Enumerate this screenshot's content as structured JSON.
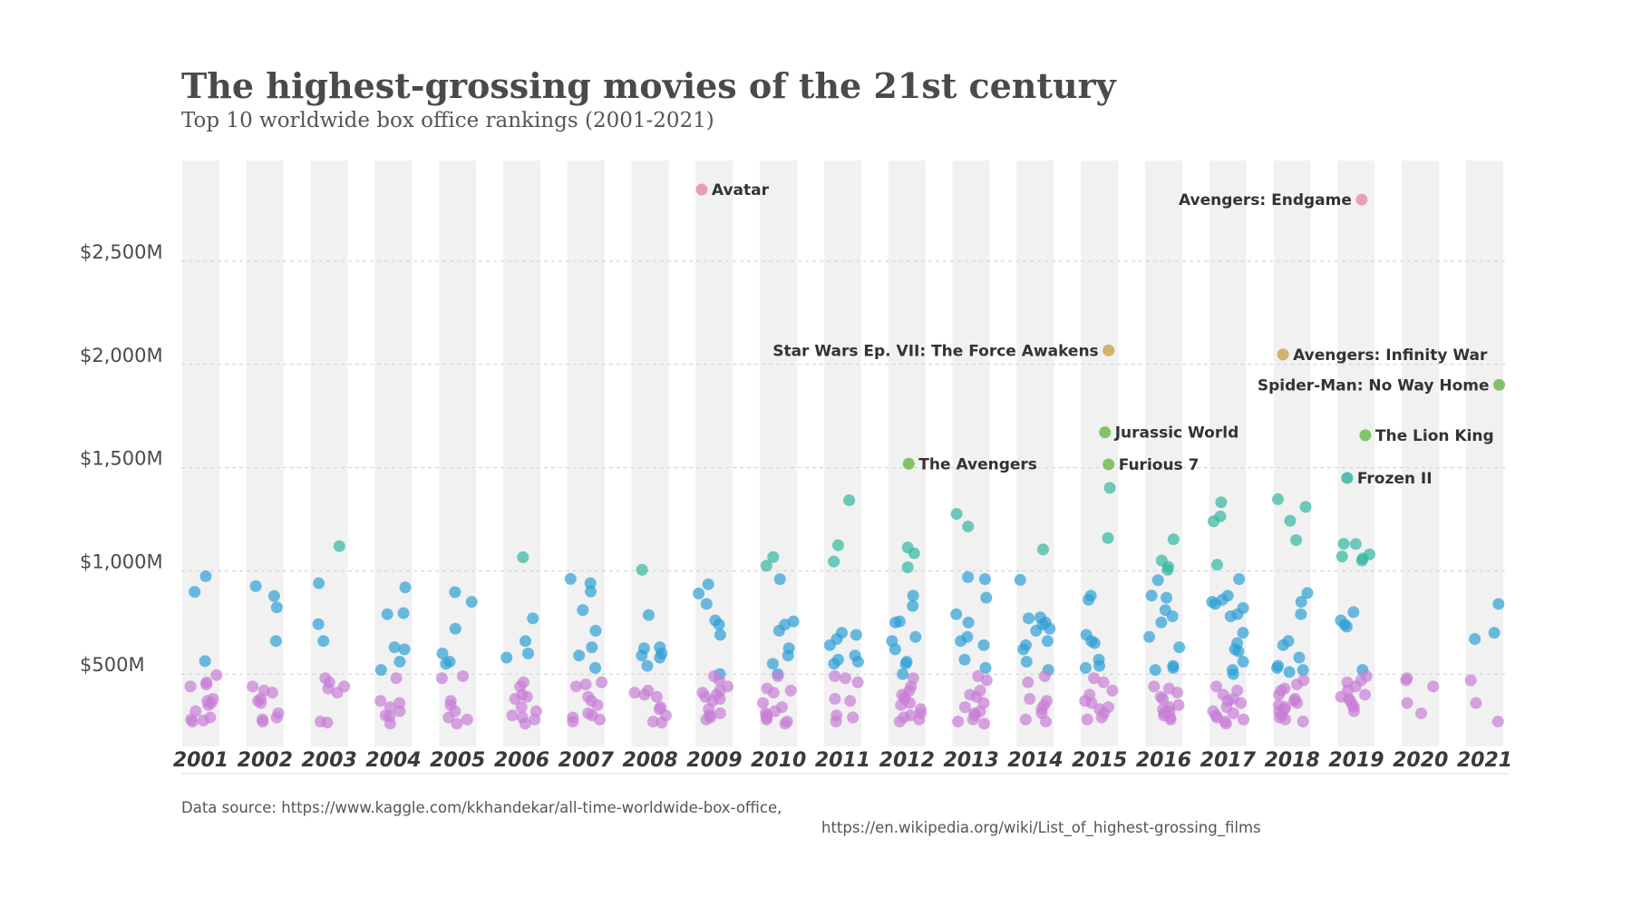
{
  "chart_data": {
    "type": "scatter",
    "title": "The highest-grossing movies of the 21st century",
    "subtitle": "Top 10 worldwide box office rankings (2001-2021)",
    "source_line1": "Data source: https://www.kaggle.com/kkhandekar/all-time-worldwide-box-office,",
    "source_line2": "https://en.wikipedia.org/wiki/List_of_highest-grossing_films",
    "xlabel": "",
    "ylabel": "",
    "ylim": [
      0,
      3000
    ],
    "y_ticks": [
      {
        "value": 500,
        "label": "$500M"
      },
      {
        "value": 1000,
        "label": "$1,000M"
      },
      {
        "value": 1500,
        "label": "$1,500M"
      },
      {
        "value": 2000,
        "label": "$2,000M"
      },
      {
        "value": 2500,
        "label": "$2,500M"
      }
    ],
    "grid": "horizontal dashed",
    "categories": [
      "2001",
      "2002",
      "2003",
      "2004",
      "2005",
      "2006",
      "2007",
      "2008",
      "2009",
      "2010",
      "2011",
      "2012",
      "2013",
      "2014",
      "2015",
      "2016",
      "2017",
      "2018",
      "2019",
      "2020",
      "2021"
    ],
    "series_colors": {
      "under500": "#c77ed6",
      "500to1000": "#2e9fd6",
      "1000to1500": "#33b6a0",
      "1500to2000": "#6fbb4d",
      "2000to2500": "#caa753",
      "over2500": "#e88fa8"
    },
    "years": {
      "2001": {
        "large": [
          974,
          898,
          563
        ],
        "small": [
          495,
          460,
          450,
          440,
          380,
          370,
          360,
          350,
          320,
          290,
          280,
          275,
          270
        ]
      },
      "2002": {
        "large": [
          926,
          878,
          823,
          660
        ],
        "small": [
          440,
          420,
          410,
          380,
          370,
          360,
          310,
          290,
          280,
          270
        ]
      },
      "2003": {
        "large": [
          1120,
          940,
          742,
          660
        ],
        "small": [
          480,
          460,
          440,
          430,
          410,
          270,
          265
        ]
      },
      "2004": {
        "large": [
          920,
          795,
          790,
          630,
          620,
          560,
          520
        ],
        "small": [
          480,
          370,
          360,
          340,
          320,
          300,
          295,
          260
        ]
      },
      "2005": {
        "large": [
          897,
          850,
          720,
          600,
          560,
          550
        ],
        "small": [
          490,
          480,
          370,
          350,
          320,
          290,
          280,
          260
        ]
      },
      "2006": {
        "large": [
          1066,
          770,
          660,
          600,
          580
        ],
        "small": [
          460,
          440,
          400,
          390,
          380,
          340,
          320,
          300,
          290,
          280,
          260
        ]
      },
      "2007": {
        "large": [
          961,
          940,
          900,
          810,
          710,
          630,
          590,
          530
        ],
        "small": [
          460,
          450,
          440,
          390,
          370,
          350,
          310,
          300,
          290,
          280,
          270
        ]
      },
      "2008": {
        "large": [
          1005,
          786,
          630,
          625,
          600,
          590,
          580,
          540
        ],
        "small": [
          420,
          410,
          400,
          390,
          340,
          330,
          300,
          270,
          265
        ]
      },
      "2009": {
        "large": [
          935,
          890,
          840,
          760,
          740,
          690
        ],
        "small": [
          500,
          490,
          470,
          440,
          420,
          410,
          400,
          390,
          380,
          370,
          330,
          310,
          300,
          290,
          280
        ]
      },
      "2010": {
        "large": [
          1067,
          1025,
          960,
          755,
          740,
          710,
          625,
          590,
          550
        ],
        "small": [
          500,
          490,
          430,
          420,
          410,
          360,
          340,
          320,
          310,
          300,
          290,
          280,
          270,
          260
        ]
      },
      "2011": {
        "large": [
          1342,
          1124,
          1045,
          700,
          690,
          670,
          640,
          590,
          570,
          560,
          550
        ],
        "small": [
          490,
          480,
          460,
          380,
          370,
          300,
          290,
          270
        ]
      },
      "2012": {
        "large": [
          1113,
          1085,
          1017,
          880,
          830,
          755,
          750,
          680,
          660,
          620,
          560,
          550
        ],
        "small": [
          500,
          480,
          440,
          420,
          400,
          390,
          380,
          360,
          350,
          330,
          310,
          300,
          290,
          280,
          270
        ]
      },
      "2013": {
        "large": [
          1276,
          1215,
          970,
          960,
          870,
          790,
          750,
          680,
          660,
          640,
          570,
          530
        ],
        "small": [
          490,
          470,
          420,
          400,
          390,
          360,
          340,
          320,
          310,
          300,
          280,
          270,
          260
        ]
      },
      "2014": {
        "large": [
          1104,
          956,
          775,
          770,
          750,
          740,
          720,
          710,
          660,
          640,
          620,
          560,
          520
        ],
        "small": [
          490,
          460,
          380,
          370,
          350,
          330,
          310,
          280,
          270
        ]
      },
      "2015": {
        "large": [
          1402,
          1159,
          880,
          860,
          690,
          660,
          650,
          570,
          540,
          530
        ],
        "small": [
          480,
          460,
          420,
          400,
          370,
          360,
          340,
          330,
          310,
          290,
          280
        ]
      },
      "2016": {
        "large": [
          1153,
          1050,
          1020,
          1005,
          955,
          880,
          870,
          810,
          780,
          750,
          680,
          630,
          540,
          530,
          520
        ],
        "small": [
          440,
          430,
          410,
          390,
          380,
          350,
          340,
          330,
          320,
          310,
          300,
          290,
          280
        ]
      },
      "2017": {
        "large": [
          1332,
          1264,
          1240,
          1030,
          960,
          880,
          860,
          850,
          840,
          820,
          790,
          780,
          700,
          650,
          620,
          610,
          560,
          520
        ],
        "small": [
          500,
          440,
          420,
          400,
          380,
          370,
          360,
          340,
          320,
          310,
          300,
          290,
          280,
          270,
          260
        ]
      },
      "2018": {
        "large": [
          1347,
          1310,
          1243,
          1149,
          893,
          850,
          790,
          660,
          640,
          580,
          540,
          530,
          520,
          510
        ],
        "small": [
          470,
          450,
          430,
          420,
          400,
          380,
          370,
          360,
          350,
          340,
          330,
          320,
          300,
          290,
          280,
          270
        ]
      },
      "2019": {
        "large": [
          1131,
          1130,
          1080,
          1070,
          1060,
          1050,
          800,
          760,
          740,
          730,
          520
        ],
        "small": [
          490,
          470,
          460,
          440,
          420,
          400,
          390,
          380,
          370,
          350,
          340,
          320
        ]
      },
      "2020": {
        "large": [],
        "small": [
          480,
          470,
          440,
          360,
          310
        ]
      },
      "2021": {
        "large": [
          840,
          700,
          670
        ],
        "small": [
          470,
          360,
          270
        ]
      }
    },
    "annotations": [
      {
        "label": "Avatar",
        "year": "2009",
        "value": 2847,
        "side": "right"
      },
      {
        "label": "Avengers: Endgame",
        "year": "2019",
        "value": 2798,
        "side": "left"
      },
      {
        "label": "Star Wars Ep. VII: The Force Awakens",
        "year": "2015",
        "value": 2068,
        "side": "left"
      },
      {
        "label": "Avengers: Infinity War",
        "year": "2018",
        "value": 2048,
        "side": "right"
      },
      {
        "label": "Spider-Man: No Way Home",
        "year": "2021",
        "value": 1901,
        "side": "left"
      },
      {
        "label": "Jurassic World",
        "year": "2015",
        "value": 1671,
        "side": "right"
      },
      {
        "label": "The Lion King",
        "year": "2019",
        "value": 1657,
        "side": "right"
      },
      {
        "label": "The Avengers",
        "year": "2012",
        "value": 1519,
        "side": "right"
      },
      {
        "label": "Furious 7",
        "year": "2015",
        "value": 1516,
        "side": "right"
      },
      {
        "label": "Frozen II",
        "year": "2019",
        "value": 1450,
        "side": "right"
      }
    ]
  }
}
